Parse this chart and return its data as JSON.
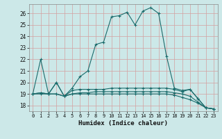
{
  "xlabel": "Humidex (Indice chaleur)",
  "background_color": "#cce8e8",
  "line_color": "#1a6b6b",
  "grid_color": "#b0d0d0",
  "xlim": [
    -0.5,
    23.5
  ],
  "ylim": [
    17.5,
    26.8
  ],
  "yticks": [
    18,
    19,
    20,
    21,
    22,
    23,
    24,
    25,
    26
  ],
  "xticks": [
    0,
    1,
    2,
    3,
    4,
    5,
    6,
    7,
    8,
    9,
    10,
    11,
    12,
    13,
    14,
    15,
    16,
    17,
    18,
    19,
    20,
    21,
    22,
    23
  ],
  "series": [
    {
      "x": [
        0,
        1,
        2,
        3,
        4,
        5,
        6,
        7,
        8,
        9,
        10,
        11,
        12,
        13,
        14,
        15,
        16,
        17,
        18,
        19,
        20,
        21,
        22,
        23
      ],
      "y": [
        19.0,
        22.0,
        19.0,
        20.0,
        18.8,
        19.5,
        20.5,
        21.0,
        23.3,
        23.5,
        25.7,
        25.8,
        26.1,
        25.0,
        26.2,
        26.5,
        26.0,
        22.3,
        19.5,
        19.3,
        19.4,
        18.6,
        17.8,
        17.7
      ]
    },
    {
      "x": [
        0,
        1,
        2,
        3,
        4,
        5,
        6,
        7,
        8,
        9,
        10,
        11,
        12,
        13,
        14,
        15,
        16,
        17,
        18,
        19,
        20,
        21,
        22,
        23
      ],
      "y": [
        19.0,
        19.1,
        19.0,
        20.0,
        18.8,
        19.3,
        19.4,
        19.4,
        19.4,
        19.4,
        19.5,
        19.5,
        19.5,
        19.5,
        19.5,
        19.5,
        19.5,
        19.5,
        19.4,
        19.2,
        19.4,
        18.6,
        17.8,
        17.7
      ]
    },
    {
      "x": [
        0,
        1,
        2,
        3,
        4,
        5,
        6,
        7,
        8,
        9,
        10,
        11,
        12,
        13,
        14,
        15,
        16,
        17,
        18,
        19,
        20,
        21,
        22,
        23
      ],
      "y": [
        19.0,
        19.1,
        19.0,
        19.0,
        18.8,
        19.0,
        19.1,
        19.1,
        19.2,
        19.2,
        19.2,
        19.2,
        19.2,
        19.2,
        19.2,
        19.2,
        19.2,
        19.2,
        19.1,
        19.0,
        18.8,
        18.3,
        17.8,
        17.7
      ]
    },
    {
      "x": [
        0,
        1,
        2,
        3,
        4,
        5,
        6,
        7,
        8,
        9,
        10,
        11,
        12,
        13,
        14,
        15,
        16,
        17,
        18,
        19,
        20,
        21,
        22,
        23
      ],
      "y": [
        19.0,
        19.0,
        19.0,
        19.0,
        18.8,
        19.0,
        19.0,
        19.0,
        19.0,
        19.0,
        19.0,
        19.0,
        19.0,
        19.0,
        19.0,
        19.0,
        19.0,
        19.0,
        18.9,
        18.7,
        18.5,
        18.2,
        17.8,
        17.7
      ]
    }
  ]
}
